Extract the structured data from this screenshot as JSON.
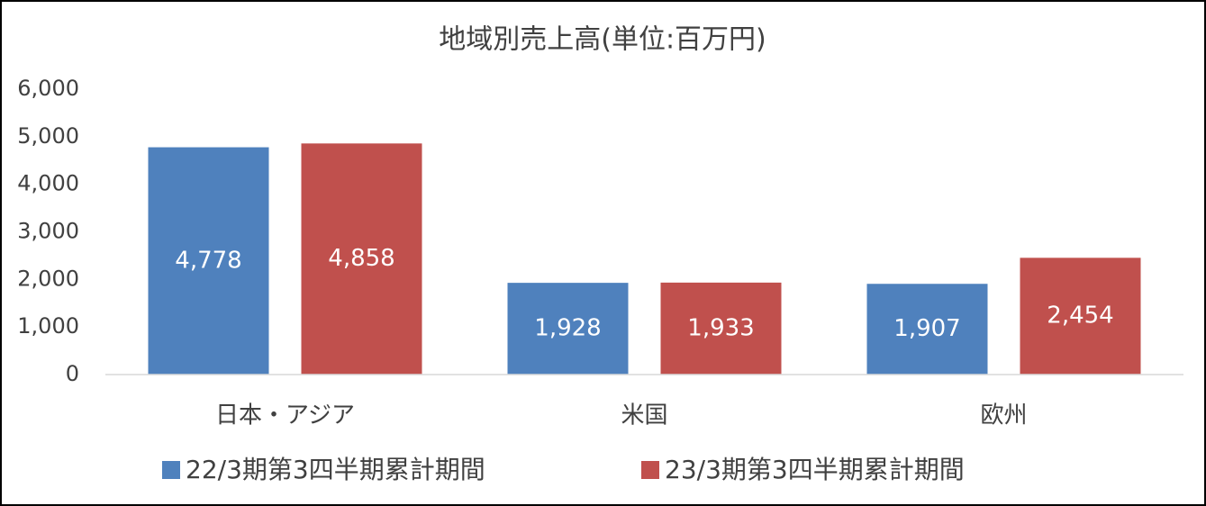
{
  "chart_data": {
    "type": "bar",
    "title": "地域別売上高(単位:百万円)",
    "categories": [
      "日本・アジア",
      "米国",
      "欧州"
    ],
    "series": [
      {
        "name": "22/3期第3四半期累計期間",
        "color": "#4f81bd",
        "values": [
          4778,
          1928,
          1907
        ],
        "value_labels": [
          "4,778",
          "1,928",
          "1,907"
        ]
      },
      {
        "name": "23/3期第3四半期累計期間",
        "color": "#c0504d",
        "values": [
          4858,
          1933,
          2454
        ],
        "value_labels": [
          "4,858",
          "1,933",
          "2,454"
        ]
      }
    ],
    "ylim": [
      0,
      6000
    ],
    "yticks": [
      0,
      {
        "value": 1000,
        "label": "1,000"
      },
      {
        "value": 2000,
        "label": "2,000"
      },
      {
        "value": 3000,
        "label": "3,000"
      },
      {
        "value": 4000,
        "label": "4,000"
      },
      {
        "value": 5000,
        "label": "5,000"
      },
      {
        "value": 6000,
        "label": "6,000"
      }
    ],
    "grid": false,
    "legend": "bottom"
  }
}
